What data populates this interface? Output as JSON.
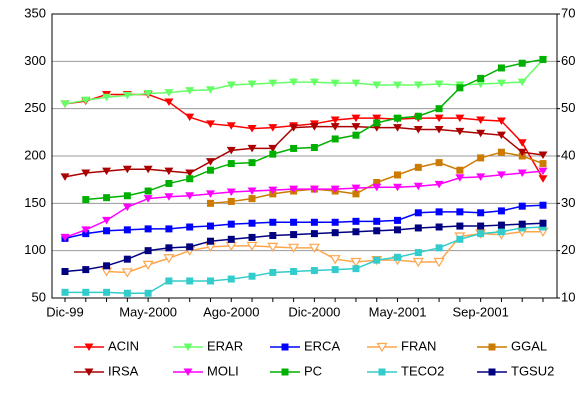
{
  "chart_data": {
    "type": "line",
    "categories": [
      "Dic-99",
      null,
      null,
      null,
      "May-2000",
      null,
      null,
      null,
      "Ago-2000",
      null,
      null,
      null,
      "Dic-2000",
      null,
      null,
      null,
      "May-2001",
      null,
      null,
      null,
      "Sep-2001",
      null,
      null,
      null
    ],
    "ylim": [
      50,
      350
    ],
    "yticks": [
      50,
      100,
      150,
      200,
      250,
      300,
      350
    ],
    "y2lim": [
      10,
      70
    ],
    "y2ticks": [
      10,
      20,
      30,
      40,
      50,
      60,
      70
    ],
    "grid": true,
    "series": [
      {
        "name": "ACIN",
        "color": "#ff0000",
        "marker": "triangle-down",
        "values": [
          255,
          258,
          265,
          265,
          265,
          257,
          241,
          234,
          232,
          229,
          230,
          232,
          234,
          238,
          240,
          240,
          239,
          240,
          240,
          240,
          238,
          237,
          214,
          176
        ]
      },
      {
        "name": "ERAR",
        "color": "#66ff66",
        "marker": "triangle-down",
        "values": [
          255,
          259,
          262,
          264,
          266,
          267,
          269,
          270,
          275,
          276,
          277,
          278,
          278,
          277,
          277,
          275,
          275,
          275,
          276,
          275,
          276,
          277,
          278,
          302
        ]
      },
      {
        "name": "ERCA",
        "color": "#0000ff",
        "marker": "square",
        "values": [
          113,
          118,
          121,
          122,
          123,
          123,
          125,
          126,
          128,
          129,
          130,
          130,
          130,
          130,
          131,
          131,
          132,
          140,
          141,
          141,
          140,
          142,
          147,
          148
        ]
      },
      {
        "name": "FRAN",
        "color": "#ffa64d",
        "marker": "triangle-down-open",
        "values": [
          null,
          null,
          78,
          77,
          85,
          92,
          100,
          104,
          105,
          105,
          104,
          103,
          103,
          91,
          88,
          90,
          90,
          88,
          88,
          115,
          118,
          117,
          120,
          120
        ]
      },
      {
        "name": "GGAL",
        "color": "#cc7a00",
        "marker": "square",
        "values": [
          null,
          null,
          null,
          null,
          null,
          null,
          null,
          150,
          152,
          155,
          160,
          163,
          165,
          163,
          160,
          172,
          180,
          188,
          193,
          185,
          198,
          204,
          200,
          192
        ]
      },
      {
        "name": "IRSA",
        "color": "#aa0000",
        "marker": "triangle-down",
        "values": [
          178,
          182,
          184,
          186,
          186,
          184,
          182,
          194,
          206,
          208,
          208,
          230,
          231,
          231,
          231,
          230,
          230,
          228,
          228,
          226,
          224,
          222,
          204,
          201
        ]
      },
      {
        "name": "MOLI",
        "color": "#ff00ff",
        "marker": "triangle-down",
        "values": [
          114,
          122,
          132,
          146,
          155,
          157,
          158,
          160,
          162,
          163,
          164,
          165,
          165,
          165,
          166,
          167,
          167,
          168,
          170,
          177,
          178,
          180,
          182,
          184
        ]
      },
      {
        "name": "PC",
        "color": "#00b000",
        "marker": "square",
        "values": [
          null,
          154,
          156,
          158,
          163,
          171,
          176,
          185,
          192,
          193,
          202,
          208,
          209,
          218,
          222,
          235,
          240,
          242,
          250,
          272,
          282,
          293,
          298,
          302
        ]
      },
      {
        "name": "TECO2",
        "color": "#33cccc",
        "marker": "square",
        "values": [
          56,
          56,
          56,
          55,
          55,
          68,
          68,
          68,
          70,
          73,
          77,
          78,
          79,
          80,
          81,
          90,
          93,
          98,
          103,
          112,
          118,
          120,
          124,
          125
        ]
      },
      {
        "name": "TGSU2",
        "color": "#000080",
        "marker": "square",
        "values": [
          78,
          80,
          84,
          91,
          100,
          103,
          104,
          110,
          112,
          114,
          116,
          117,
          118,
          119,
          120,
          121,
          122,
          124,
          125,
          126,
          126,
          127,
          128,
          129
        ]
      }
    ]
  }
}
